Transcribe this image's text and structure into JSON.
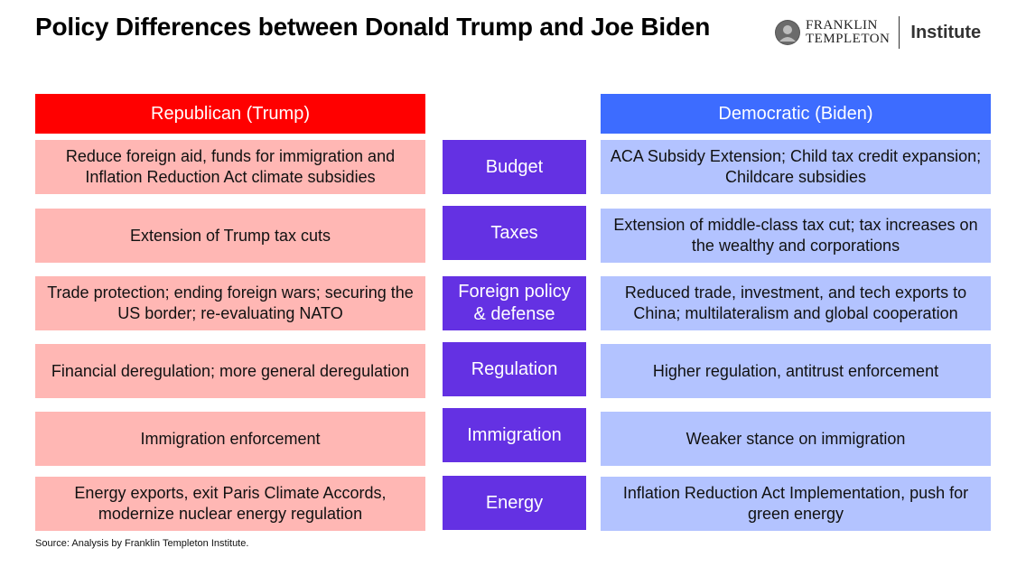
{
  "title": "Policy Differences between Donald Trump and Joe Biden",
  "logo": {
    "brand_line1": "FRANKLIN",
    "brand_line2": "TEMPLETON",
    "institute": "Institute"
  },
  "headers": {
    "republican": "Republican (Trump)",
    "democratic": "Democratic (Biden)"
  },
  "rows": [
    {
      "category": "Budget",
      "republican": "Reduce foreign aid, funds for immigration and Inflation Reduction Act climate subsidies",
      "democratic": "ACA Subsidy Extension; Child tax credit expansion; Childcare subsidies"
    },
    {
      "category": "Taxes",
      "republican": "Extension of Trump tax cuts",
      "democratic": "Extension of middle-class tax cut; tax increases on the wealthy and corporations"
    },
    {
      "category": "Foreign policy & defense",
      "republican": "Trade protection; ending foreign wars; securing the US border; re-evaluating NATO",
      "democratic": "Reduced trade, investment, and tech exports to China; multilateralism and global cooperation"
    },
    {
      "category": "Regulation",
      "republican": "Financial deregulation; more general deregulation",
      "democratic": "Higher regulation, antitrust enforcement"
    },
    {
      "category": "Immigration",
      "republican": "Immigration enforcement",
      "democratic": "Weaker stance on immigration"
    },
    {
      "category": "Energy",
      "republican": "Energy exports, exit Paris Climate Accords, modernize nuclear energy regulation",
      "democratic": "Inflation Reduction Act Implementation, push for green energy"
    }
  ],
  "source": "Source: Analysis by Franklin Templeton Institute.",
  "colors": {
    "republican_header": "#ff0000",
    "republican_cell": "#ffb7b4",
    "democratic_header": "#3d6cff",
    "democratic_cell": "#b3c3ff",
    "category": "#6431e3"
  }
}
